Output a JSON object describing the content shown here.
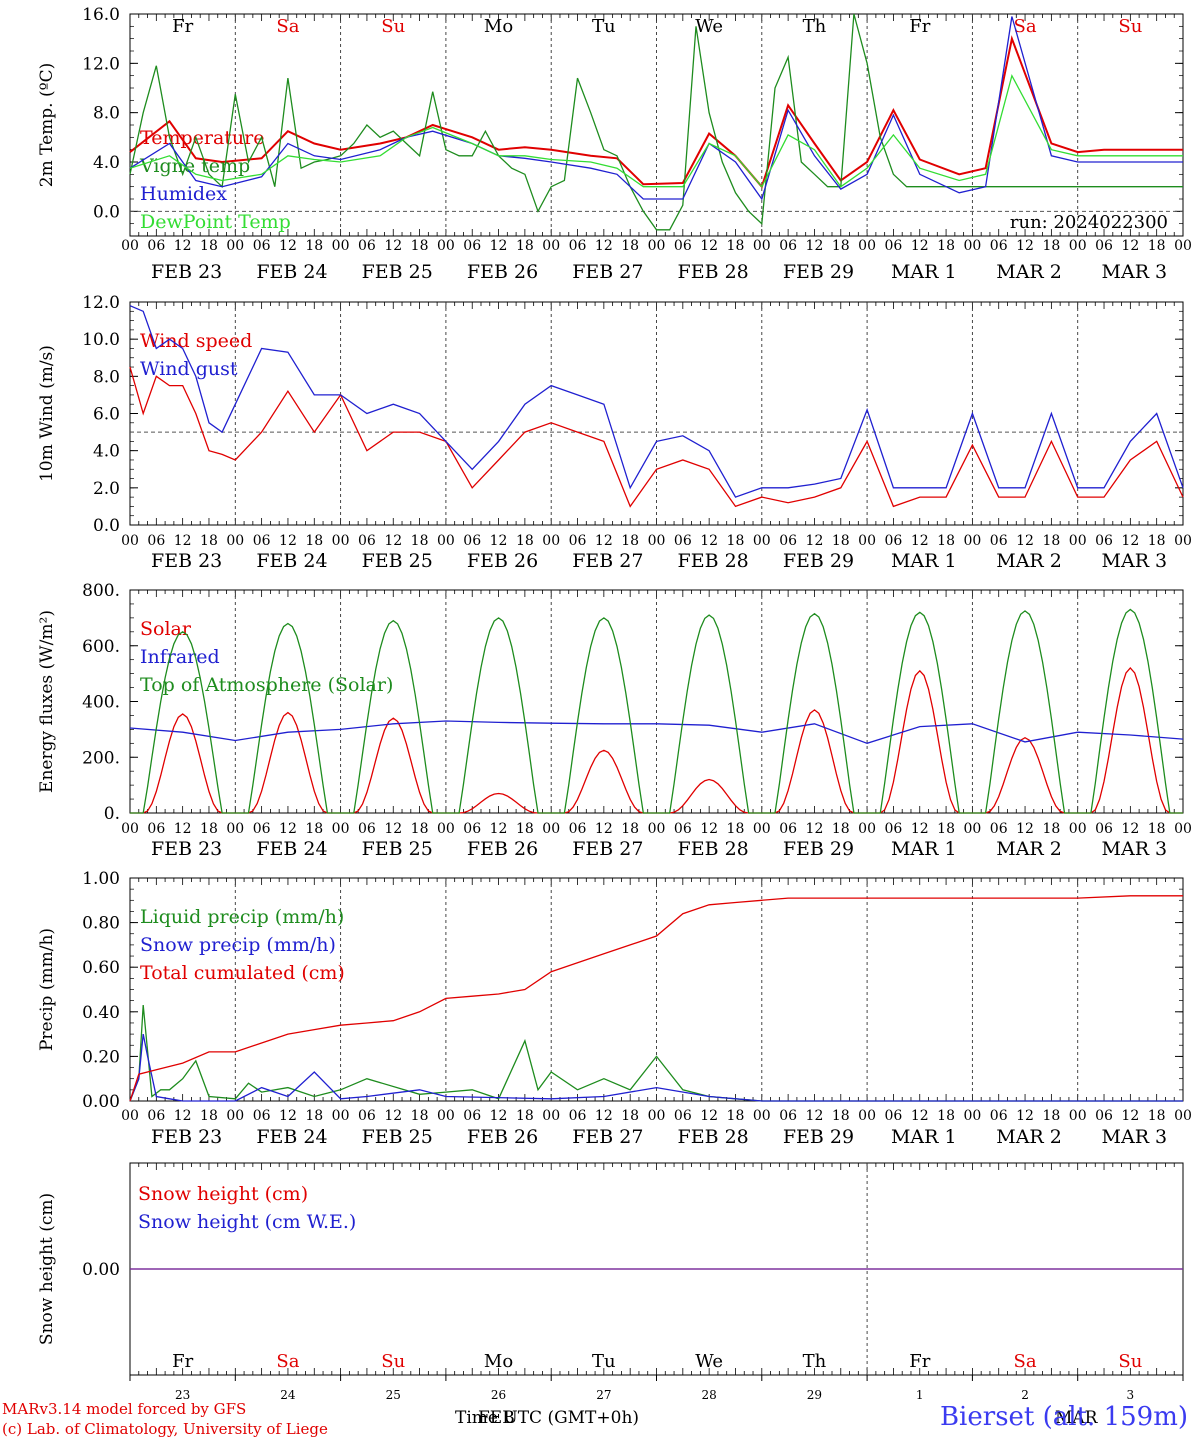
{
  "meta": {
    "run_label": "run: 2024022300",
    "credit_line1": "MARv3.14 model forced by GFS",
    "credit_line2": "(c) Lab. of Climatology, University of Liege",
    "station": "Bierset (alt. 159m)",
    "time_axis_label": "Time UTC (GMT+0h)",
    "month_label_feb": "FEB",
    "month_label_mar": "MAR"
  },
  "colors": {
    "red": "#e00000",
    "green": "#1e8c1e",
    "blue": "#2020d0",
    "lightgreen": "#33dd33",
    "purple": "#7a2a9a",
    "grid": "#444444"
  },
  "days": {
    "weekday_labels": [
      "Fr",
      "Sa",
      "Su",
      "Mo",
      "Tu",
      "We",
      "Th",
      "Fr",
      "Sa",
      "Su"
    ],
    "weekday_colors": [
      "black",
      "red",
      "red",
      "black",
      "black",
      "black",
      "black",
      "black",
      "red",
      "red"
    ],
    "date_labels": [
      "FEB 23",
      "FEB 24",
      "FEB 25",
      "FEB 26",
      "FEB 27",
      "FEB 28",
      "FEB 29",
      "MAR  1",
      "MAR  2",
      "MAR  3"
    ],
    "day_numbers": [
      "23",
      "24",
      "25",
      "26",
      "27",
      "28",
      "29",
      "1",
      "2",
      "3"
    ],
    "hour_ticks": [
      "00",
      "06",
      "12",
      "18"
    ],
    "last_tick": "00"
  },
  "chart_data": [
    {
      "type": "line",
      "id": "temp",
      "ylabel": "2m Temp. (ºC)",
      "ylim": [
        -2,
        16
      ],
      "yticks": [
        0,
        4,
        8,
        12,
        16
      ],
      "ytick_labels": [
        "0.0",
        "4.0",
        "8.0",
        "12.0",
        "16.0"
      ],
      "xlim_hours": [
        0,
        240
      ],
      "ref_line": 0,
      "legend_position": "left",
      "series": [
        {
          "name": "Temperature",
          "color": "red",
          "x": [
            0,
            9,
            15,
            21,
            30,
            36,
            42,
            48,
            57,
            63,
            69,
            78,
            84,
            90,
            96,
            105,
            111,
            117,
            126,
            132,
            138,
            144,
            150,
            156,
            162,
            168,
            174,
            180,
            189,
            195,
            201,
            210,
            216,
            222,
            228,
            234,
            240
          ],
          "values": [
            4.8,
            7.3,
            4.3,
            4.0,
            4.3,
            6.5,
            5.5,
            5.0,
            5.5,
            6.0,
            7.0,
            6.0,
            5.0,
            5.2,
            5.0,
            4.5,
            4.3,
            2.2,
            2.3,
            6.3,
            4.5,
            2.0,
            8.6,
            5.5,
            2.5,
            4.0,
            8.2,
            4.2,
            3.0,
            3.5,
            14.0,
            5.5,
            4.8,
            5.0,
            5.0,
            5.0,
            5.0
          ]
        },
        {
          "name": "Vigne temp",
          "color": "green",
          "x": [
            0,
            3,
            6,
            9,
            12,
            15,
            18,
            21,
            24,
            27,
            30,
            33,
            36,
            39,
            42,
            45,
            48,
            51,
            54,
            57,
            60,
            63,
            66,
            69,
            72,
            75,
            78,
            81,
            84,
            87,
            90,
            93,
            96,
            99,
            102,
            105,
            108,
            111,
            114,
            117,
            120,
            123,
            126,
            129,
            132,
            135,
            138,
            141,
            144,
            147,
            150,
            153,
            156,
            159,
            162,
            165,
            168,
            171,
            174,
            177,
            180,
            183,
            186,
            189,
            192,
            195,
            198,
            201,
            204,
            207,
            210,
            216,
            222,
            228,
            234,
            240
          ],
          "values": [
            3.0,
            8.0,
            11.8,
            6.0,
            3.0,
            6.0,
            3.0,
            2.0,
            9.5,
            4.0,
            6.0,
            2.0,
            10.8,
            3.5,
            4.0,
            4.2,
            4.5,
            5.5,
            7.0,
            6.0,
            6.5,
            5.5,
            4.5,
            9.7,
            5.0,
            4.5,
            4.5,
            6.5,
            4.5,
            3.5,
            3.0,
            0.0,
            2.0,
            2.5,
            10.8,
            8.0,
            5.0,
            4.5,
            2.0,
            0.0,
            -1.5,
            -1.5,
            0.5,
            15.0,
            8.0,
            4.0,
            1.5,
            0.0,
            -1.0,
            10.0,
            12.5,
            4.0,
            3.0,
            2.0,
            2.0,
            16.0,
            12.0,
            6.0,
            3.0,
            2.0,
            2.0,
            2.0,
            2.0,
            2.0,
            2.0,
            2.0,
            2.0,
            2.0,
            2.0,
            2.0,
            2.0,
            2.0,
            2.0,
            2.0,
            2.0,
            2.0
          ]
        },
        {
          "name": "Humidex",
          "color": "blue",
          "x": [
            0,
            9,
            15,
            21,
            30,
            36,
            42,
            48,
            57,
            63,
            69,
            78,
            84,
            90,
            96,
            105,
            111,
            117,
            126,
            132,
            138,
            144,
            150,
            156,
            162,
            168,
            174,
            180,
            189,
            195,
            201,
            210,
            216,
            222,
            228,
            234,
            240
          ],
          "values": [
            3.5,
            5.5,
            2.5,
            2.0,
            2.8,
            5.5,
            4.5,
            4.2,
            5.0,
            6.0,
            6.5,
            5.5,
            4.5,
            4.3,
            4.0,
            3.5,
            3.0,
            1.0,
            1.0,
            5.5,
            4.0,
            1.0,
            8.2,
            4.5,
            1.8,
            3.0,
            7.8,
            3.0,
            1.5,
            2.0,
            15.8,
            4.5,
            4.0,
            4.0,
            4.0,
            4.0,
            4.0
          ]
        },
        {
          "name": "DewPoint Temp",
          "color": "lightgreen",
          "x": [
            0,
            9,
            15,
            21,
            30,
            36,
            42,
            48,
            57,
            63,
            69,
            78,
            84,
            90,
            96,
            105,
            111,
            117,
            126,
            132,
            138,
            144,
            150,
            156,
            162,
            168,
            174,
            180,
            189,
            195,
            201,
            210,
            216,
            222,
            228,
            234,
            240
          ],
          "values": [
            3.5,
            4.5,
            3.0,
            2.5,
            3.0,
            4.5,
            4.2,
            4.0,
            4.5,
            6.0,
            6.8,
            5.5,
            4.5,
            4.5,
            4.2,
            4.0,
            3.5,
            2.0,
            2.0,
            5.5,
            4.5,
            2.0,
            6.2,
            5.0,
            2.0,
            3.5,
            6.2,
            3.5,
            2.5,
            3.0,
            11.0,
            5.0,
            4.5,
            4.5,
            4.5,
            4.5,
            4.5
          ]
        }
      ]
    },
    {
      "type": "line",
      "id": "wind",
      "ylabel": "10m Wind (m/s)",
      "ylim": [
        0,
        12
      ],
      "yticks": [
        0,
        2,
        4,
        6,
        8,
        10,
        12
      ],
      "ytick_labels": [
        "0.0",
        "2.0",
        "4.0",
        "6.0",
        "8.0",
        "10.0",
        "12.0"
      ],
      "xlim_hours": [
        0,
        240
      ],
      "ref_line": 5,
      "legend_position": "left",
      "series": [
        {
          "name": "Wind speed",
          "color": "red",
          "x": [
            0,
            3,
            6,
            9,
            12,
            15,
            18,
            21,
            24,
            30,
            36,
            42,
            48,
            54,
            60,
            66,
            72,
            78,
            84,
            90,
            96,
            102,
            108,
            114,
            120,
            126,
            132,
            138,
            144,
            150,
            156,
            162,
            168,
            174,
            180,
            186,
            192,
            198,
            204,
            210,
            216,
            222,
            228,
            234,
            240
          ],
          "values": [
            8.5,
            6.0,
            8.0,
            7.5,
            7.5,
            6.0,
            4.0,
            3.8,
            3.5,
            5.0,
            7.2,
            5.0,
            7.0,
            4.0,
            5.0,
            5.0,
            4.5,
            2.0,
            3.5,
            5.0,
            5.5,
            5.0,
            4.5,
            1.0,
            3.0,
            3.5,
            3.0,
            1.0,
            1.5,
            1.2,
            1.5,
            2.0,
            4.5,
            1.0,
            1.5,
            1.5,
            4.3,
            1.5,
            1.5,
            4.5,
            1.5,
            1.5,
            3.5,
            4.5,
            1.5
          ]
        },
        {
          "name": "Wind gust",
          "color": "blue",
          "x": [
            0,
            3,
            6,
            9,
            12,
            15,
            18,
            21,
            24,
            30,
            36,
            42,
            48,
            54,
            60,
            66,
            72,
            78,
            84,
            90,
            96,
            102,
            108,
            114,
            120,
            126,
            132,
            138,
            144,
            150,
            156,
            162,
            168,
            174,
            180,
            186,
            192,
            198,
            204,
            210,
            216,
            222,
            228,
            234,
            240
          ],
          "values": [
            11.8,
            11.5,
            9.5,
            10.0,
            9.5,
            8.0,
            5.5,
            5.0,
            6.5,
            9.5,
            9.3,
            7.0,
            7.0,
            6.0,
            6.5,
            6.0,
            4.5,
            3.0,
            4.5,
            6.5,
            7.5,
            7.0,
            6.5,
            2.0,
            4.5,
            4.8,
            4.0,
            1.5,
            2.0,
            2.0,
            2.2,
            2.5,
            6.2,
            2.0,
            2.0,
            2.0,
            6.0,
            2.0,
            2.0,
            6.0,
            2.0,
            2.0,
            4.5,
            6.0,
            2.0
          ]
        }
      ]
    },
    {
      "type": "line",
      "id": "energy",
      "ylabel": "Energy fluxes (W/m²)",
      "ylim": [
        0,
        800
      ],
      "yticks": [
        0,
        200,
        400,
        600,
        800
      ],
      "ytick_labels": [
        "0.",
        "200.",
        "400.",
        "600.",
        "800."
      ],
      "xlim_hours": [
        0,
        240
      ],
      "legend_position": "left",
      "solar_noon_hour": 12,
      "day_halfwidth_hours": 9,
      "series": [
        {
          "name": "Solar",
          "color": "red",
          "daily_peaks": [
            355,
            360,
            340,
            70,
            225,
            120,
            370,
            510,
            270,
            520
          ]
        },
        {
          "name": "Infrared",
          "color": "blue",
          "x": [
            0,
            12,
            24,
            36,
            48,
            60,
            72,
            84,
            96,
            108,
            120,
            132,
            144,
            156,
            168,
            180,
            192,
            204,
            216,
            228,
            240
          ],
          "values": [
            305,
            290,
            260,
            290,
            300,
            320,
            330,
            325,
            322,
            320,
            320,
            315,
            290,
            320,
            250,
            310,
            320,
            255,
            290,
            280,
            265
          ]
        },
        {
          "name": "Top of Atmosphere (Solar)",
          "color": "green",
          "daily_peaks": [
            650,
            680,
            690,
            700,
            700,
            710,
            715,
            720,
            725,
            730
          ]
        }
      ]
    },
    {
      "type": "line",
      "id": "precip",
      "ylabel": "Precip (mm/h)",
      "ylim": [
        0,
        1.0
      ],
      "yticks": [
        0,
        0.2,
        0.4,
        0.6,
        0.8,
        1.0
      ],
      "ytick_labels": [
        "0.00",
        "0.20",
        "0.40",
        "0.60",
        "0.80",
        "1.00"
      ],
      "xlim_hours": [
        0,
        240
      ],
      "legend_position": "left",
      "series": [
        {
          "name": "Liquid precip (mm/h)",
          "color": "green",
          "x": [
            0,
            2,
            3,
            5,
            7,
            9,
            12,
            15,
            18,
            24,
            27,
            30,
            36,
            42,
            48,
            54,
            66,
            72,
            78,
            84,
            90,
            93,
            96,
            102,
            108,
            114,
            120,
            126,
            132,
            138,
            144,
            150,
            240
          ],
          "values": [
            0,
            0.1,
            0.43,
            0.02,
            0.05,
            0.05,
            0.1,
            0.18,
            0.02,
            0.01,
            0.08,
            0.04,
            0.06,
            0.02,
            0.05,
            0.1,
            0.03,
            0.04,
            0.05,
            0.01,
            0.27,
            0.05,
            0.13,
            0.05,
            0.1,
            0.05,
            0.2,
            0.05,
            0.02,
            0.01,
            0.0,
            0.0,
            0.0
          ]
        },
        {
          "name": "Snow precip (mm/h)",
          "color": "blue",
          "x": [
            0,
            2,
            3,
            4,
            6,
            9,
            12,
            18,
            24,
            30,
            36,
            42,
            48,
            54,
            66,
            72,
            96,
            108,
            120,
            132,
            144,
            150,
            240
          ],
          "values": [
            0,
            0.1,
            0.3,
            0.2,
            0.02,
            0.01,
            0.0,
            0.0,
            0.0,
            0.06,
            0.02,
            0.13,
            0.01,
            0.02,
            0.05,
            0.02,
            0.01,
            0.02,
            0.06,
            0.02,
            0.0,
            0.0,
            0.0
          ]
        },
        {
          "name": "Total cumulated (cm)",
          "color": "red",
          "x": [
            0,
            2,
            6,
            12,
            18,
            24,
            30,
            36,
            42,
            48,
            54,
            60,
            66,
            72,
            78,
            84,
            90,
            96,
            102,
            108,
            114,
            120,
            126,
            132,
            138,
            144,
            150,
            156,
            168,
            180,
            192,
            204,
            216,
            228,
            240
          ],
          "values": [
            0,
            0.12,
            0.14,
            0.17,
            0.22,
            0.22,
            0.26,
            0.3,
            0.32,
            0.34,
            0.35,
            0.36,
            0.4,
            0.46,
            0.47,
            0.48,
            0.5,
            0.58,
            0.62,
            0.66,
            0.7,
            0.74,
            0.84,
            0.88,
            0.89,
            0.9,
            0.91,
            0.91,
            0.91,
            0.91,
            0.91,
            0.91,
            0.91,
            0.92,
            0.92
          ]
        }
      ]
    },
    {
      "type": "line",
      "id": "snow",
      "ylabel": "Snow height (cm)",
      "ylim": [
        -1,
        1
      ],
      "yticks": [
        0
      ],
      "ytick_labels": [
        "0.00"
      ],
      "xlim_hours": [
        0,
        240
      ],
      "legend_position": "left",
      "series": [
        {
          "name": "Snow height (cm)",
          "color": "red",
          "x": [
            0,
            240
          ],
          "values": [
            0,
            0
          ]
        },
        {
          "name": "Snow height (cm W.E.)",
          "color": "blue",
          "x": [
            0,
            240
          ],
          "values": [
            0,
            0
          ]
        }
      ]
    }
  ]
}
